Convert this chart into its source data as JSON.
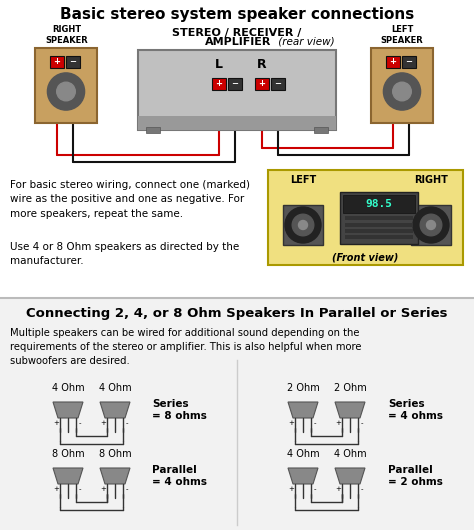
{
  "title": "Basic stereo system speaker connections",
  "bg_color": "#ffffff",
  "speaker_color": "#c8a060",
  "speaker_dark": "#8b6530",
  "amp_color": "#c0c0c0",
  "amp_dark": "#888888",
  "terminal_red": "#cc0000",
  "terminal_black": "#333333",
  "wire_red": "#cc0000",
  "wire_black": "#111111",
  "front_view_bg": "#f0e080",
  "section2_title": "Connecting 2, 4, or 8 Ohm Speakers In Parallel or Series",
  "body_text1": "For basic stereo wiring, connect one (marked)\nwire as the positive and one as negative. For\nmore speakers, repeat the same.",
  "body_text2": "Use 4 or 8 Ohm speakers as directed by the\nmanufacturer.",
  "section2_body": "Multiple speakers can be wired for additional sound depending on the\nrequirements of the stereo or amplifier. This is also helpful when more\nsubwoofers are desired.",
  "series1_label": "Series\n= 8 ohms",
  "parallel1_label": "Parallel\n= 4 ohms",
  "series2_label": "Series\n= 4 ohms",
  "parallel2_label": "Parallel\n= 2 ohms"
}
